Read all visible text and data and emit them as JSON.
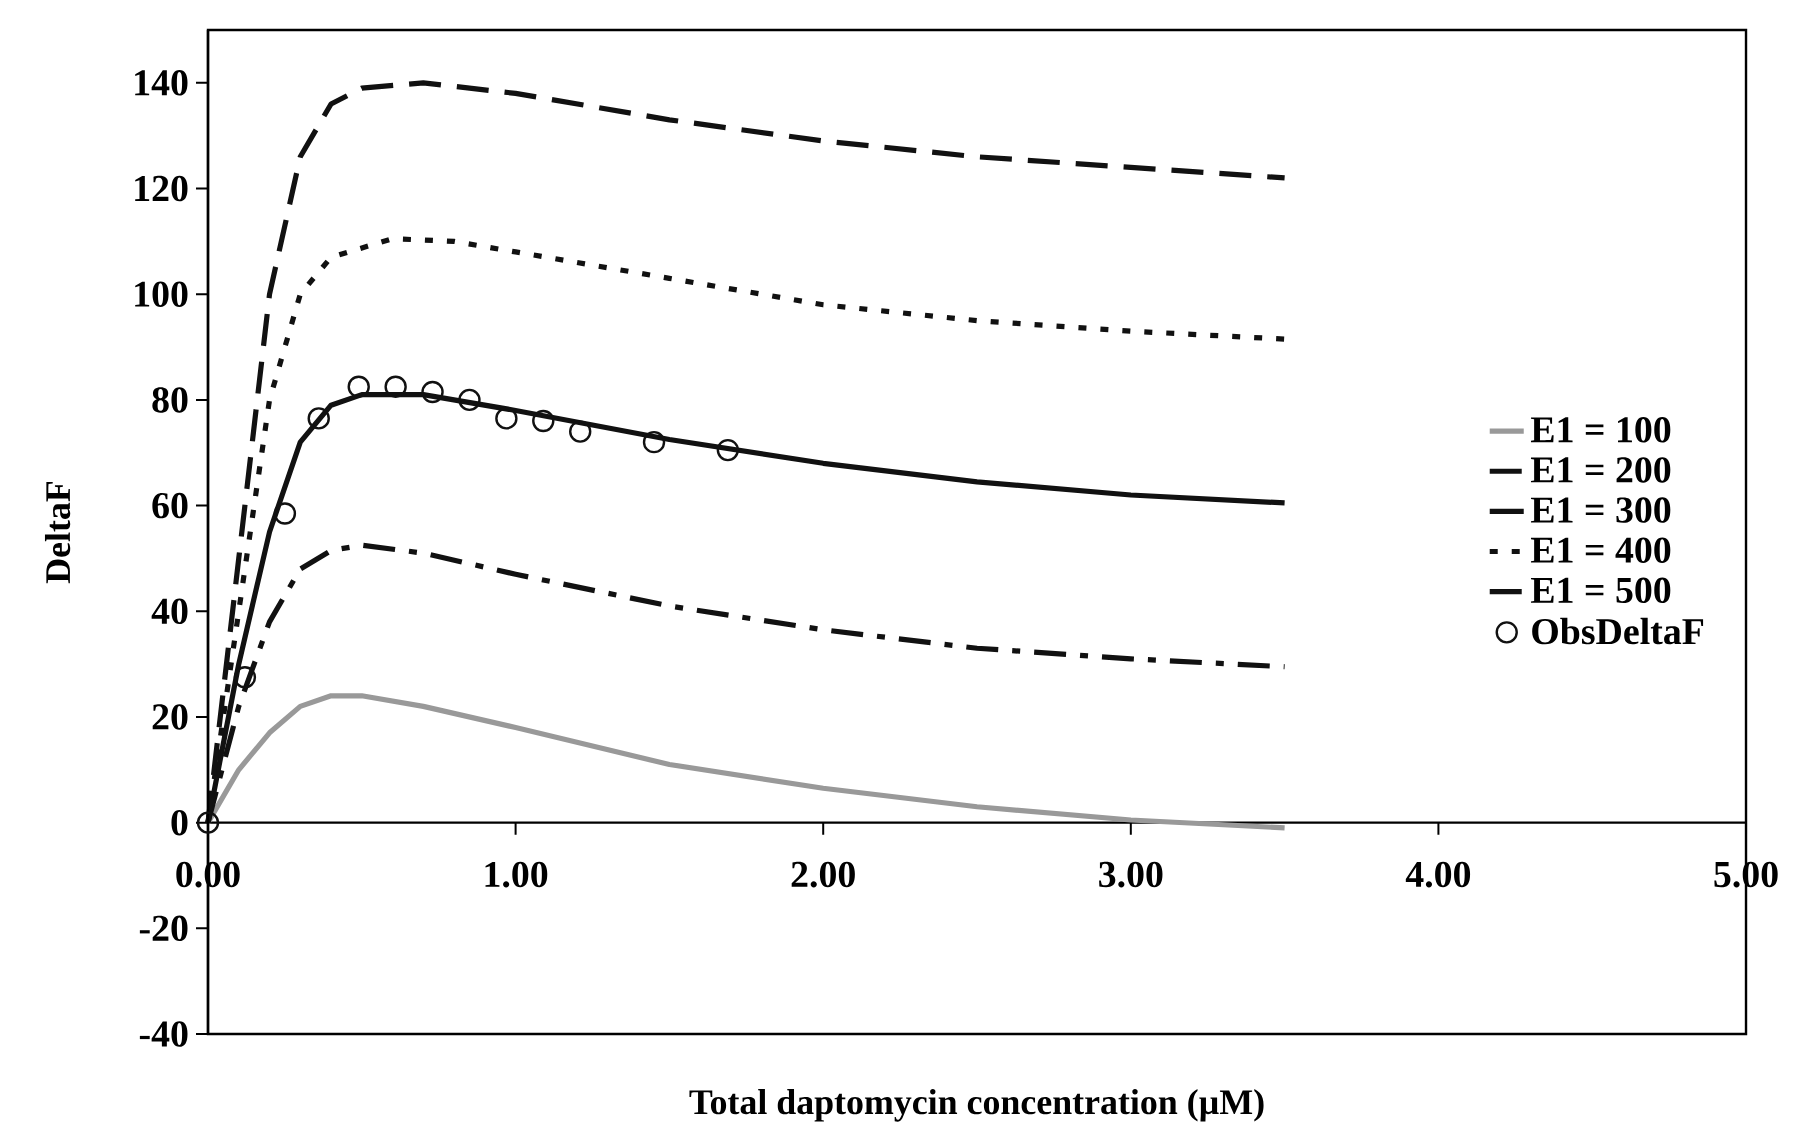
{
  "chart_data": {
    "type": "line",
    "xlabel": "Total daptomycin concentration (µM)",
    "ylabel": "DeltaF",
    "xlim": [
      0,
      5
    ],
    "ylim": [
      -40,
      150
    ],
    "xticks": [
      {
        "value": 0,
        "label": "0.00"
      },
      {
        "value": 1,
        "label": "1.00"
      },
      {
        "value": 2,
        "label": "2.00"
      },
      {
        "value": 3,
        "label": "3.00"
      },
      {
        "value": 4,
        "label": "4.00"
      },
      {
        "value": 5,
        "label": "5.00"
      }
    ],
    "yticks": [
      -40,
      -20,
      0,
      20,
      40,
      60,
      80,
      100,
      120,
      140
    ],
    "legend": "right",
    "grid": false,
    "series": [
      {
        "name": "E1 = 100",
        "color": "#999999",
        "line_style": "solid",
        "x": [
          0,
          0.1,
          0.2,
          0.3,
          0.4,
          0.5,
          0.7,
          1.0,
          1.5,
          2.0,
          2.5,
          3.0,
          3.5
        ],
        "values": [
          0,
          10,
          17,
          22,
          24,
          24,
          22,
          18,
          11,
          6.5,
          3,
          0.5,
          -1
        ]
      },
      {
        "name": "E1 = 200",
        "color": "#111111",
        "line_style": "dashdot",
        "x": [
          0,
          0.1,
          0.2,
          0.3,
          0.4,
          0.5,
          0.7,
          1.0,
          1.5,
          2.0,
          2.5,
          3.0,
          3.5
        ],
        "values": [
          0,
          22,
          38,
          48,
          51.5,
          52.5,
          51,
          47,
          41,
          36.5,
          33,
          31,
          29.5
        ]
      },
      {
        "name": "E1 = 300",
        "color": "#111111",
        "line_style": "solid",
        "x": [
          0,
          0.1,
          0.2,
          0.3,
          0.4,
          0.5,
          0.7,
          1.0,
          1.5,
          2.0,
          2.5,
          3.0,
          3.5
        ],
        "values": [
          0,
          30,
          55,
          72,
          79,
          81,
          81,
          78,
          72.5,
          68,
          64.5,
          62,
          60.5
        ]
      },
      {
        "name": "E1 = 400",
        "color": "#111111",
        "line_style": "dotted",
        "x": [
          0,
          0.1,
          0.2,
          0.3,
          0.4,
          0.6,
          0.8,
          1.0,
          1.5,
          2.0,
          2.5,
          3.0,
          3.5
        ],
        "values": [
          0,
          40,
          80,
          100,
          107,
          110.5,
          110,
          108,
          103,
          98,
          95,
          93,
          91.5
        ]
      },
      {
        "name": "E1 = 500",
        "color": "#111111",
        "line_style": "dashed",
        "x": [
          0,
          0.1,
          0.2,
          0.3,
          0.4,
          0.5,
          0.7,
          1.0,
          1.5,
          2.0,
          2.5,
          3.0,
          3.5
        ],
        "values": [
          0,
          50,
          100,
          126,
          136,
          139,
          140,
          138,
          133,
          129,
          126,
          124,
          122
        ]
      },
      {
        "name": "ObsDeltaF",
        "type": "scatter",
        "marker": "circle",
        "color": "#111111",
        "x": [
          0,
          0.12,
          0.25,
          0.36,
          0.49,
          0.61,
          0.73,
          0.85,
          0.97,
          1.09,
          1.21,
          1.45,
          1.69
        ],
        "values": [
          0,
          27.5,
          58.5,
          76.5,
          82.5,
          82.5,
          81.5,
          80,
          76.5,
          76,
          74,
          72,
          70.5
        ]
      }
    ]
  }
}
